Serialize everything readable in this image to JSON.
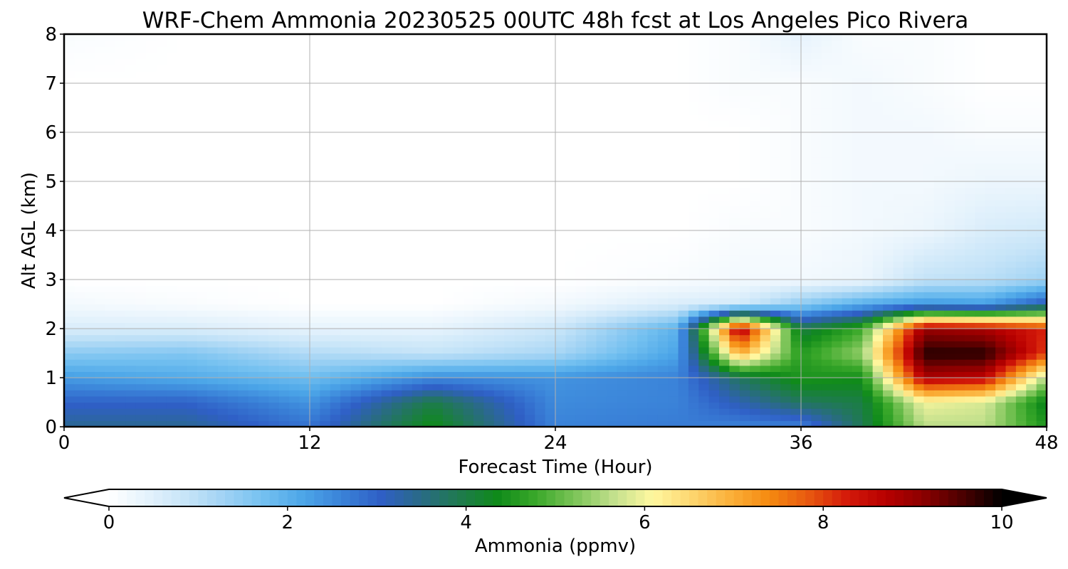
{
  "colors": {
    "background": "#ffffff",
    "grid": "#b0b0b0",
    "axis": "#000000",
    "colormap": [
      "#ffffff",
      "#e4f2fc",
      "#c6e4f8",
      "#9fd2f4",
      "#73c0f0",
      "#4ca6e8",
      "#3a82d8",
      "#2f5fc6",
      "#2a6a88",
      "#1f7a50",
      "#0f8a1a",
      "#3aa82a",
      "#7cc458",
      "#c2e08c",
      "#fff8a0",
      "#fdd670",
      "#fbb03a",
      "#f58a10",
      "#e85a10",
      "#d41a0a",
      "#b80000",
      "#8a0000",
      "#4a0000",
      "#000000"
    ]
  },
  "chart_data": {
    "type": "heatmap",
    "title": "WRF-Chem Ammonia  20230525 00UTC 48h fcst at Los Angeles Pico Rivera",
    "xlabel": "Forecast Time (Hour)",
    "ylabel": "Alt AGL (km)",
    "xlim": [
      0,
      48
    ],
    "ylim": [
      0,
      8
    ],
    "x_ticks": [
      "0",
      "12",
      "24",
      "36",
      "48"
    ],
    "y_ticks": [
      "0",
      "1",
      "2",
      "3",
      "4",
      "5",
      "6",
      "7",
      "8"
    ],
    "grid": true,
    "colorbar": {
      "label": "Ammonia  (ppmv)",
      "range": [
        0,
        10
      ],
      "ticks": [
        "0",
        "2",
        "4",
        "6",
        "8",
        "10"
      ],
      "extend": "both",
      "placement": "bottom"
    },
    "x": [
      0,
      6,
      12,
      18,
      24,
      30,
      33,
      36,
      39,
      42,
      45,
      48
    ],
    "y": [
      0,
      0.5,
      1,
      1.5,
      2,
      2.5,
      3,
      4,
      5,
      6,
      7,
      8
    ],
    "z": [
      [
        3.4,
        3.4,
        2.8,
        4.4,
        2.6,
        2.7,
        2.6,
        2.6,
        3.9,
        5.6,
        5.6,
        4.5
      ],
      [
        3.0,
        3.0,
        2.4,
        4.0,
        2.5,
        2.6,
        3.2,
        3.8,
        4.0,
        6.0,
        5.8,
        4.2
      ],
      [
        2.3,
        2.1,
        1.8,
        2.5,
        2.4,
        2.6,
        3.8,
        4.5,
        4.4,
        8.8,
        8.6,
        5.5
      ],
      [
        1.5,
        1.6,
        1.1,
        0.9,
        1.2,
        2.2,
        7.0,
        4.6,
        5.4,
        9.8,
        9.8,
        8.0
      ],
      [
        0.6,
        0.6,
        0.4,
        0.4,
        0.8,
        2.0,
        9.0,
        4.0,
        4.8,
        9.0,
        8.8,
        8.2
      ],
      [
        0.2,
        0.1,
        0.0,
        0.0,
        0.2,
        0.6,
        0.7,
        1.5,
        2.1,
        2.4,
        2.3,
        3.2
      ],
      [
        0.0,
        0.0,
        0.0,
        0.0,
        0.0,
        0.1,
        0.2,
        0.2,
        0.3,
        0.9,
        1.0,
        1.3
      ],
      [
        0.0,
        0.0,
        0.0,
        0.0,
        0.0,
        0.0,
        0.1,
        0.1,
        0.2,
        0.3,
        0.6,
        0.7
      ],
      [
        0.0,
        0.0,
        0.0,
        0.0,
        0.0,
        0.0,
        0.0,
        0.1,
        0.2,
        0.2,
        0.3,
        0.3
      ],
      [
        0.0,
        0.0,
        0.0,
        0.0,
        0.0,
        0.0,
        0.0,
        0.1,
        0.2,
        0.2,
        0.1,
        0.1
      ],
      [
        0.0,
        0.0,
        0.0,
        0.0,
        0.0,
        0.0,
        0.1,
        0.1,
        0.2,
        0.1,
        0.0,
        0.0
      ],
      [
        0.1,
        0.0,
        0.0,
        0.0,
        0.0,
        0.0,
        0.1,
        0.4,
        0.1,
        0.1,
        0.0,
        0.0
      ]
    ]
  }
}
